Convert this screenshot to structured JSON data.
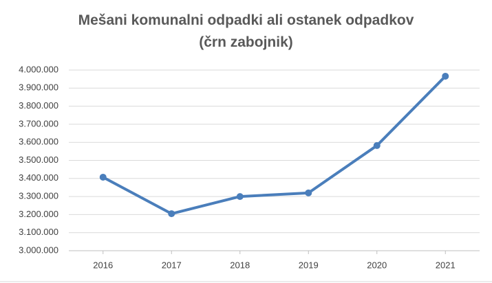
{
  "chart_data": {
    "type": "line",
    "title": "Mešani komunalni odpadki ali ostanek odpadkov\n(črn zabojnik)",
    "categories": [
      "2016",
      "2017",
      "2018",
      "2019",
      "2020",
      "2021"
    ],
    "series": [
      {
        "name": "Mešani komunalni odpadki",
        "color": "#4a7ebb",
        "values": [
          3407000,
          3205000,
          3300000,
          3320000,
          3582000,
          3966000
        ]
      }
    ],
    "ylim": [
      3000000,
      4000000
    ],
    "yticks": [
      {
        "value": 3000000,
        "label": "3.000.000"
      },
      {
        "value": 3100000,
        "label": "3.100.000"
      },
      {
        "value": 3200000,
        "label": "3.200.000"
      },
      {
        "value": 3300000,
        "label": "3.300.000"
      },
      {
        "value": 3400000,
        "label": "3.400.000"
      },
      {
        "value": 3500000,
        "label": "3.500.000"
      },
      {
        "value": 3600000,
        "label": "3.600.000"
      },
      {
        "value": 3700000,
        "label": "3.700.000"
      },
      {
        "value": 3800000,
        "label": "3.800.000"
      },
      {
        "value": 3900000,
        "label": "3.900.000"
      },
      {
        "value": 4000000,
        "label": "4.000.000"
      }
    ],
    "grid": true
  }
}
